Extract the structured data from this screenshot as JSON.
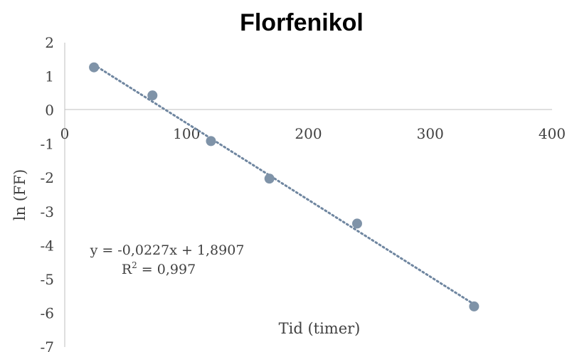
{
  "chart_data": {
    "type": "scatter",
    "title": "Florfenikol",
    "xlabel": "Tid (timer)",
    "ylabel": "ln (FF)",
    "xlim": [
      0,
      400
    ],
    "ylim": [
      -7,
      2
    ],
    "x_ticks": [
      "0",
      "100",
      "200",
      "300",
      "400"
    ],
    "y_ticks": [
      "2",
      "1",
      "0",
      "-1",
      "-2",
      "-3",
      "-4",
      "-5",
      "-6",
      "-7"
    ],
    "grid": false,
    "legend": "none",
    "series": [
      {
        "x": [
          24,
          72,
          120,
          168,
          240,
          336
        ],
        "y": [
          1.27,
          0.44,
          -0.91,
          -2.02,
          -3.35,
          -5.8
        ],
        "color": "#7f93a8"
      }
    ],
    "trendline": {
      "type": "linear",
      "slope": -0.0227,
      "intercept": 1.8907,
      "style": "dotted",
      "color": "#6f86a0",
      "equation": "y = -0,0227x + 1,8907",
      "r2_prefix": "R",
      "r2_sup": "2",
      "r2_suffix": " = 0,997"
    }
  }
}
